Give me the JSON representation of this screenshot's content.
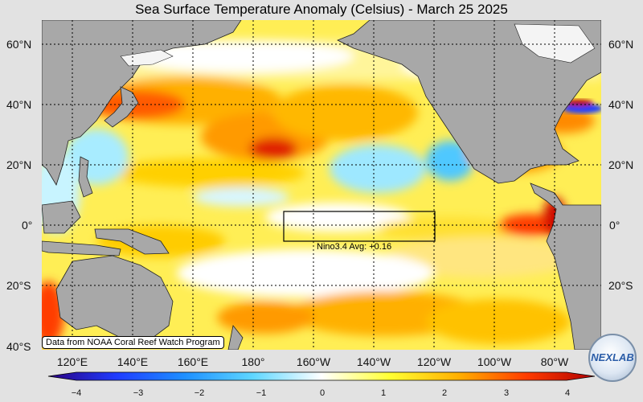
{
  "title": "Sea Surface Temperature Anomaly (Celsius) - March 25 2025",
  "latitude_labels": [
    "60°N",
    "40°N",
    "20°N",
    "0°",
    "20°S",
    "40°S"
  ],
  "longitude_labels": [
    "120°E",
    "140°E",
    "160°E",
    "180°",
    "160°W",
    "140°W",
    "120°W",
    "100°W",
    "80°W"
  ],
  "colorbar": {
    "ticks": [
      "−4",
      "−3",
      "−2",
      "−1",
      "0",
      "1",
      "2",
      "3",
      "4"
    ],
    "range": [
      -4,
      4
    ],
    "colors": [
      "#2b0080",
      "#1f3cff",
      "#1e90ff",
      "#5fd7ff",
      "#ffffff",
      "#ffff33",
      "#ffb000",
      "#ff3c00",
      "#b00000"
    ]
  },
  "nino_box": {
    "label": "Nino3.4 Avg: +0.16",
    "lon_range": [
      "170°W",
      "120°W"
    ],
    "lat_range": [
      "5°S",
      "5°N"
    ]
  },
  "credit": "Data from NOAA Coral Reef Watch Program",
  "logo_text": "NEXLAB",
  "colors": {
    "land": "#a8a8a8",
    "background": "#e2e2e2",
    "ice": "#f2f2f2"
  }
}
